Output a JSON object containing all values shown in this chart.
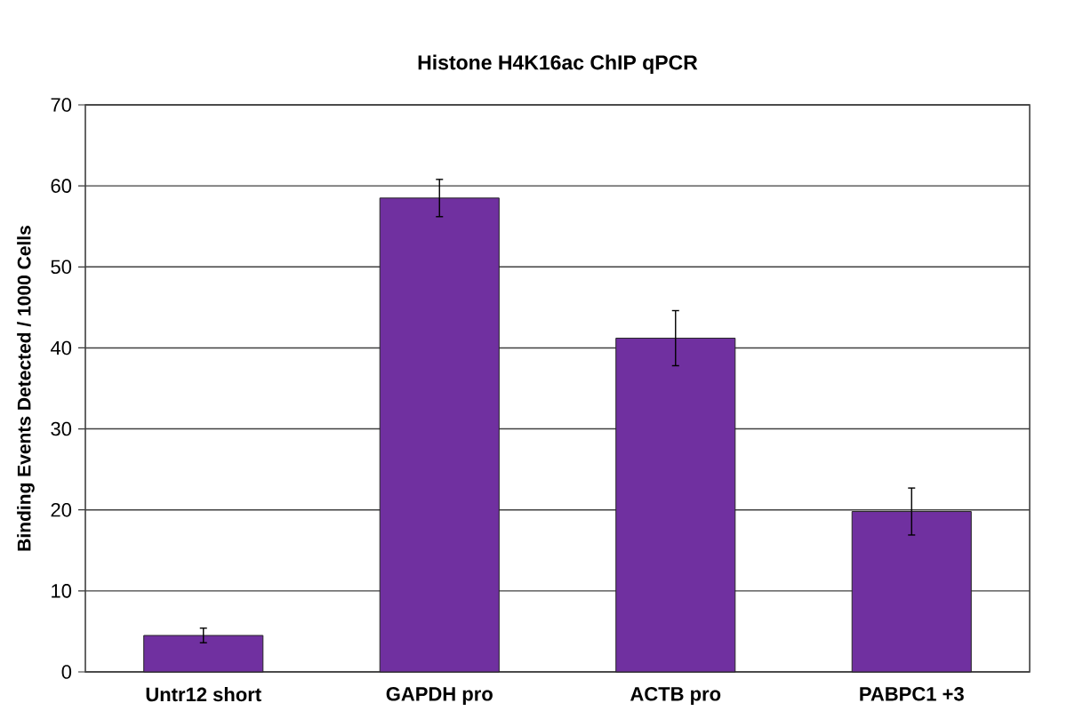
{
  "chart_data": {
    "type": "bar",
    "title": "Histone H4K16ac ChIP qPCR",
    "ylabel": "Binding Events Detected / 1000 Cells",
    "categories": [
      "Untr12 short",
      "GAPDH pro",
      "ACTB pro",
      "PABPC1 +3"
    ],
    "values": [
      4.5,
      58.5,
      41.2,
      19.8
    ],
    "errors": [
      0.9,
      2.3,
      3.4,
      2.9
    ],
    "color": "#7030a0",
    "ylim": [
      0,
      70
    ],
    "yticks": [
      0,
      10,
      20,
      30,
      40,
      50,
      60,
      70
    ],
    "grid": "y"
  }
}
